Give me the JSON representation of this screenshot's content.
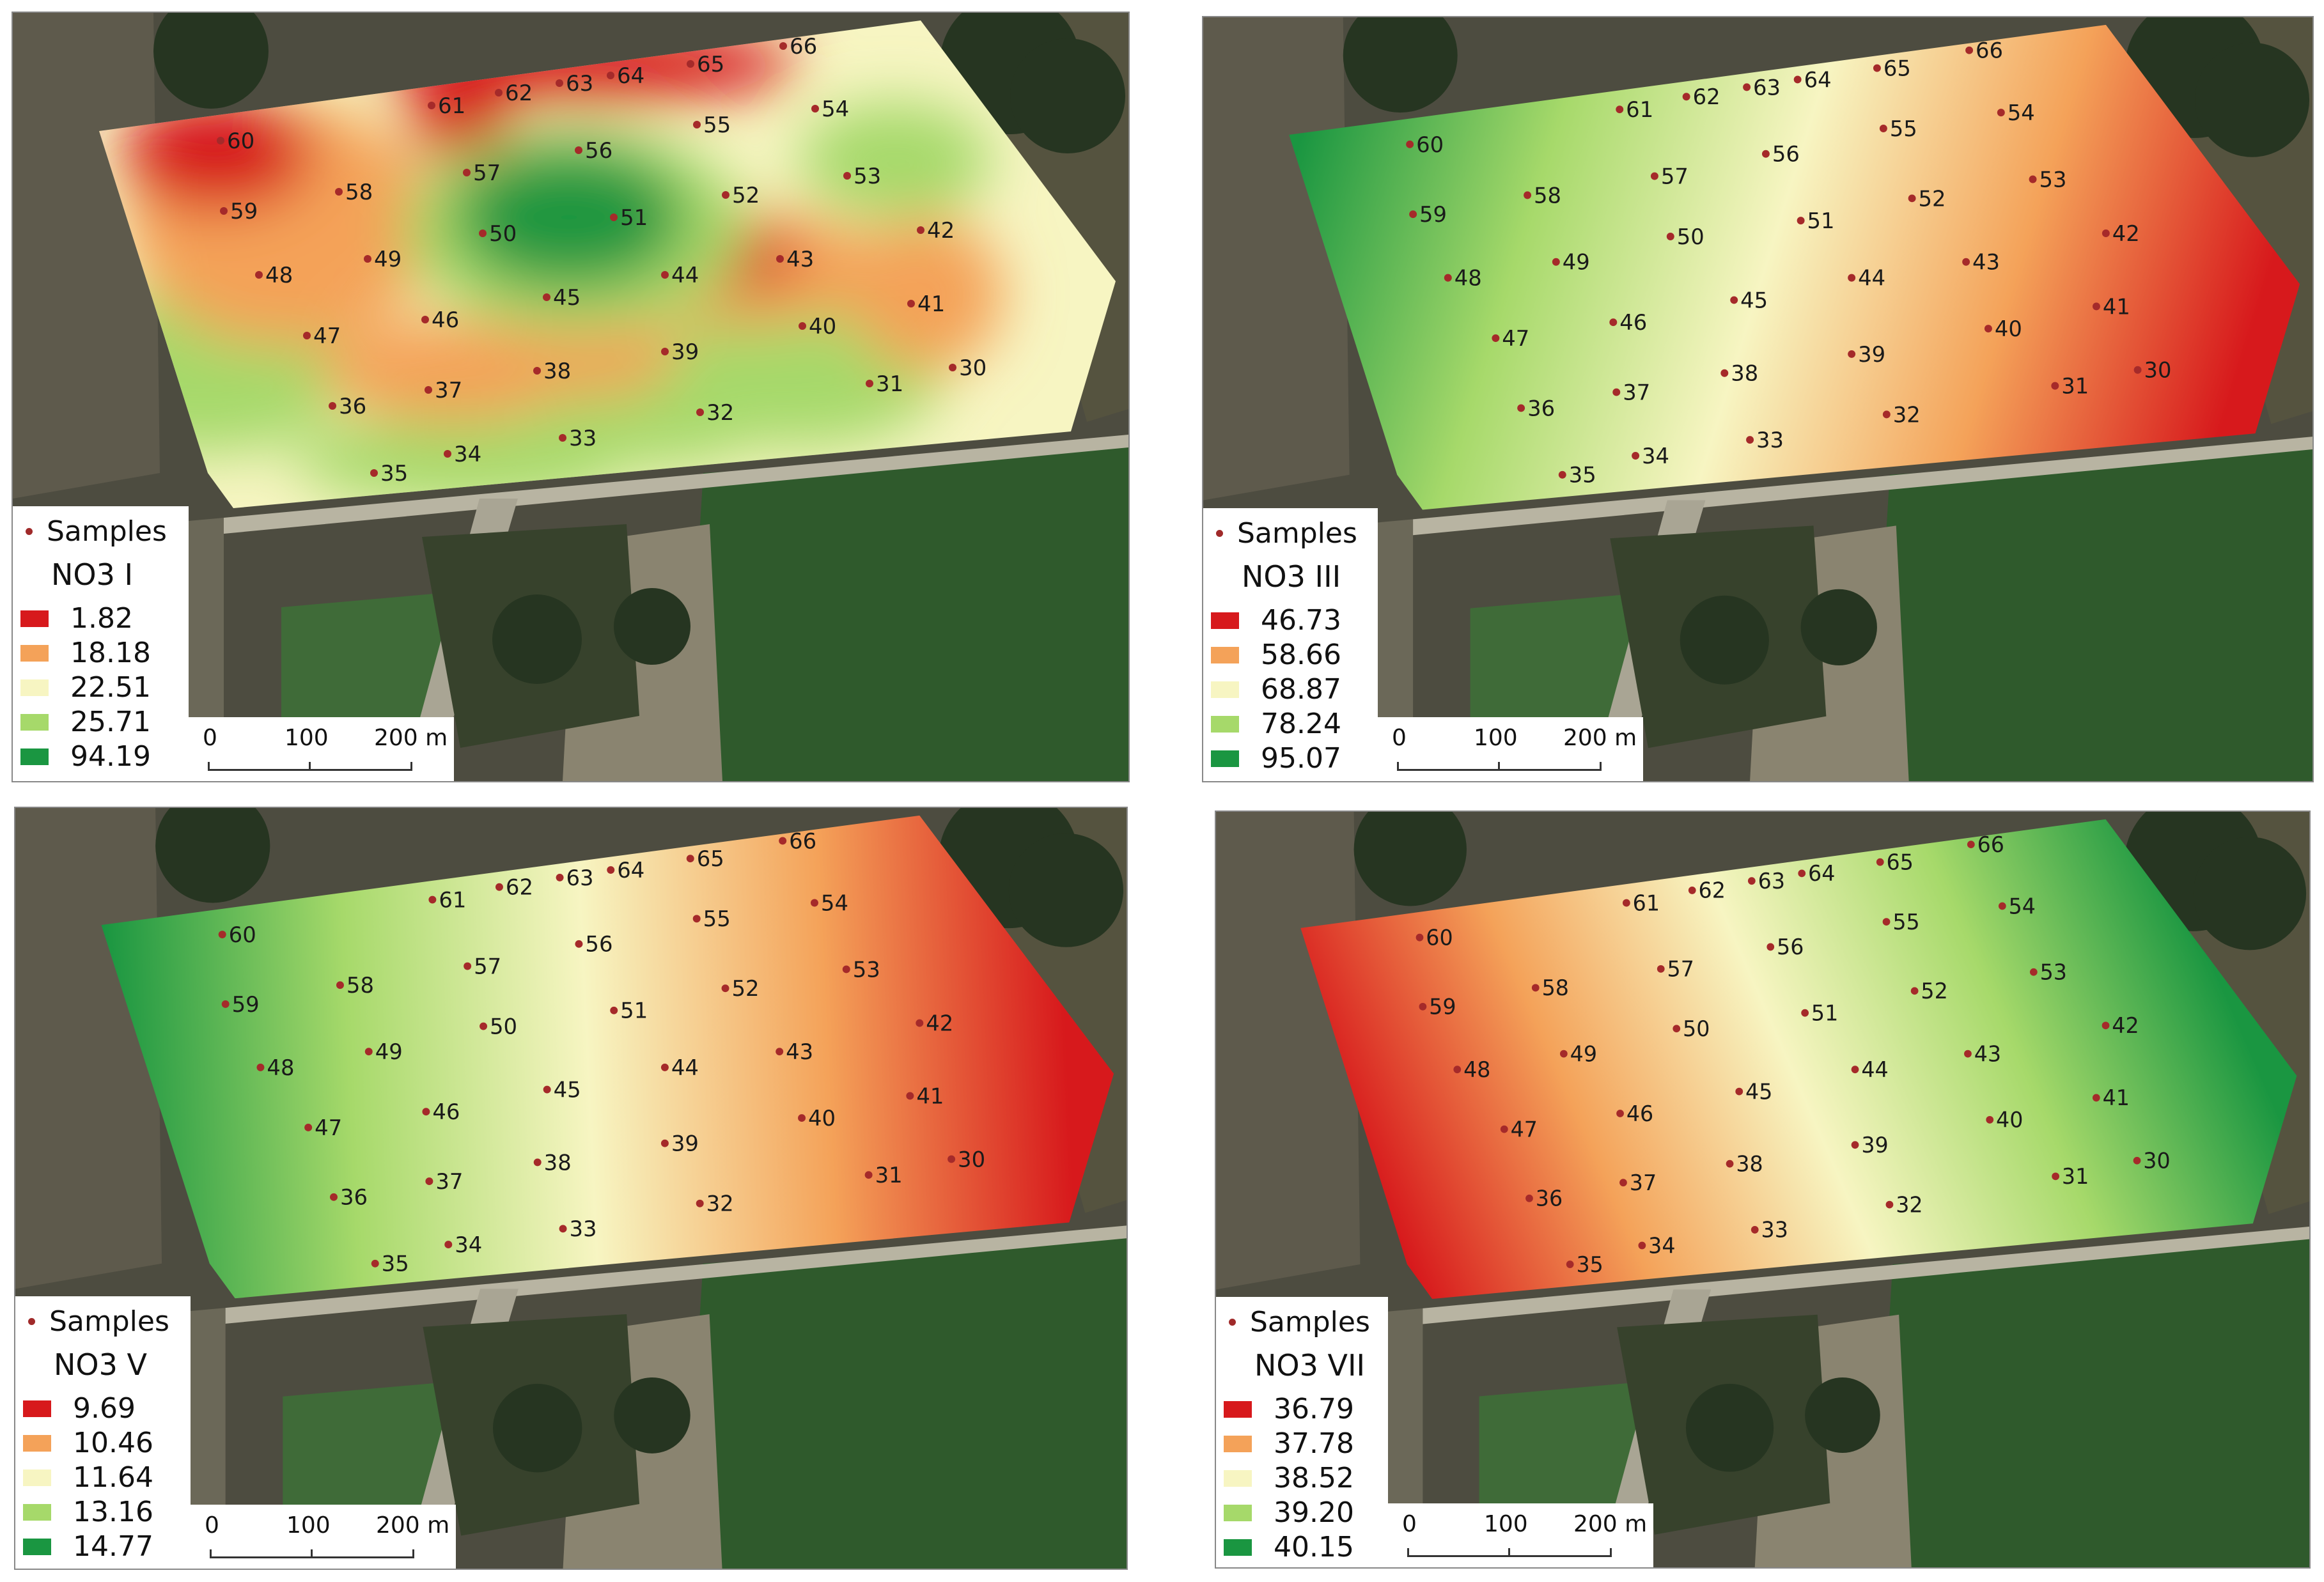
{
  "panels": [
    {
      "id": "no3-i",
      "legend": {
        "samples_label": "Samples",
        "title": "NO3 I",
        "classes": [
          {
            "label": "1.82",
            "color": "#d7191c"
          },
          {
            "label": "18.18",
            "color": "#f4a259"
          },
          {
            "label": "22.51",
            "color": "#f7f5c2"
          },
          {
            "label": "25.71",
            "color": "#a6d96a"
          },
          {
            "label": "94.19",
            "color": "#1a9641"
          }
        ]
      },
      "scale": {
        "ticks": [
          "0",
          "100",
          "200 m"
        ]
      }
    },
    {
      "id": "no3-iii",
      "legend": {
        "samples_label": "Samples",
        "title": "NO3 III",
        "classes": [
          {
            "label": "46.73",
            "color": "#d7191c"
          },
          {
            "label": "58.66",
            "color": "#f4a259"
          },
          {
            "label": "68.87",
            "color": "#f7f5c2"
          },
          {
            "label": "78.24",
            "color": "#a6d96a"
          },
          {
            "label": "95.07",
            "color": "#1a9641"
          }
        ]
      },
      "scale": {
        "ticks": [
          "0",
          "100",
          "200 m"
        ]
      }
    },
    {
      "id": "no3-v",
      "legend": {
        "samples_label": "Samples",
        "title": "NO3 V",
        "classes": [
          {
            "label": "9.69",
            "color": "#d7191c"
          },
          {
            "label": "10.46",
            "color": "#f4a259"
          },
          {
            "label": "11.64",
            "color": "#f7f5c2"
          },
          {
            "label": "13.16",
            "color": "#a6d96a"
          },
          {
            "label": "14.77",
            "color": "#1a9641"
          }
        ]
      },
      "scale": {
        "ticks": [
          "0",
          "100",
          "200 m"
        ]
      }
    },
    {
      "id": "no3-vii",
      "legend": {
        "samples_label": "Samples",
        "title": "NO3 VII",
        "classes": [
          {
            "label": "36.79",
            "color": "#d7191c"
          },
          {
            "label": "37.78",
            "color": "#f4a259"
          },
          {
            "label": "38.52",
            "color": "#f7f5c2"
          },
          {
            "label": "39.20",
            "color": "#a6d96a"
          },
          {
            "label": "40.15",
            "color": "#1a9641"
          }
        ]
      },
      "scale": {
        "ticks": [
          "0",
          "100",
          "200 m"
        ]
      }
    }
  ],
  "sample_ids": [
    "30",
    "31",
    "32",
    "33",
    "34",
    "35",
    "36",
    "37",
    "38",
    "39",
    "40",
    "41",
    "42",
    "43",
    "44",
    "45",
    "46",
    "47",
    "48",
    "49",
    "50",
    "51",
    "52",
    "53",
    "54",
    "55",
    "56",
    "57",
    "58",
    "59",
    "60",
    "61",
    "62",
    "63",
    "64",
    "65",
    "66"
  ]
}
